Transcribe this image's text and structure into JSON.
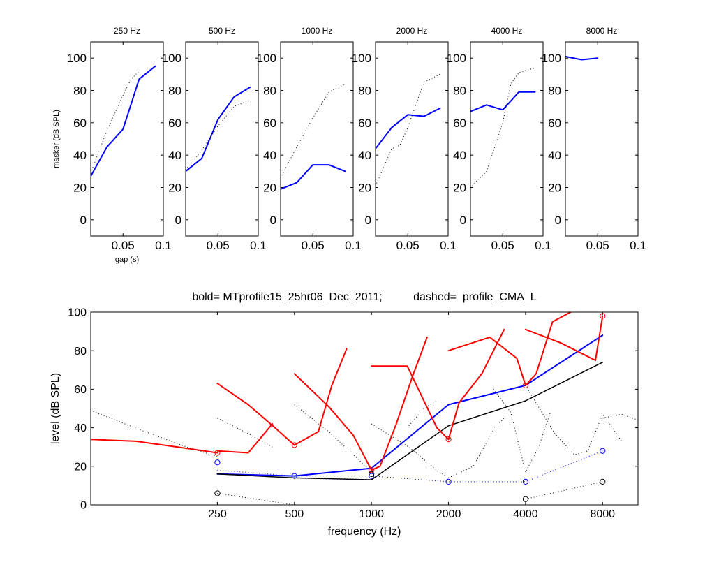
{
  "chart_data": [
    {
      "type": "line",
      "title": "250 Hz",
      "xlabel": "gap (s)",
      "ylabel": "masker (dB SPL)",
      "xlim": [
        0.01,
        0.1
      ],
      "ylim": [
        -10,
        110
      ],
      "xticks": [
        0.05,
        0.1
      ],
      "xtick_labels": [
        "0.05",
        "0.1"
      ],
      "yticks": [
        0,
        20,
        40,
        60,
        80,
        100
      ],
      "ytick_labels": [
        "0",
        "20",
        "40",
        "60",
        "80",
        "100"
      ],
      "series": [
        {
          "style": "bold",
          "color": "#0000ff",
          "x": [
            0.01,
            0.03,
            0.05,
            0.07,
            0.09
          ],
          "y": [
            27,
            45,
            56,
            87,
            95
          ]
        },
        {
          "style": "dotted",
          "color": "#000000",
          "x": [
            0.01,
            0.03,
            0.05,
            0.06,
            0.07
          ],
          "y": [
            29,
            55,
            77,
            87,
            92
          ]
        }
      ]
    },
    {
      "type": "line",
      "title": "500 Hz",
      "xlim": [
        0.01,
        0.1
      ],
      "ylim": [
        -10,
        110
      ],
      "xticks": [
        0.05,
        0.1
      ],
      "xtick_labels": [
        "0.05",
        "0.1"
      ],
      "yticks": [
        0,
        20,
        40,
        60,
        80,
        100
      ],
      "ytick_labels": [
        "0",
        "20",
        "40",
        "60",
        "80",
        "100"
      ],
      "series": [
        {
          "style": "bold",
          "color": "#0000ff",
          "x": [
            0.01,
            0.03,
            0.05,
            0.07,
            0.09
          ],
          "y": [
            30,
            38,
            62,
            76,
            82
          ]
        },
        {
          "style": "dotted",
          "color": "#000000",
          "x": [
            0.01,
            0.03,
            0.05,
            0.07,
            0.09
          ],
          "y": [
            31,
            43,
            58,
            70,
            74
          ]
        }
      ]
    },
    {
      "type": "line",
      "title": "1000 Hz",
      "xlim": [
        0.01,
        0.1
      ],
      "ylim": [
        -10,
        110
      ],
      "xticks": [
        0.05,
        0.1
      ],
      "xtick_labels": [
        "0.05",
        "0.1"
      ],
      "yticks": [
        0,
        20,
        40,
        60,
        80,
        100
      ],
      "ytick_labels": [
        "0",
        "20",
        "40",
        "60",
        "80",
        "100"
      ],
      "series": [
        {
          "style": "bold",
          "color": "#0000ff",
          "x": [
            0.01,
            0.03,
            0.05,
            0.07,
            0.09
          ],
          "y": [
            19,
            23,
            34,
            34,
            30
          ]
        },
        {
          "style": "dotted",
          "color": "#000000",
          "x": [
            0.01,
            0.03,
            0.05,
            0.07,
            0.09
          ],
          "y": [
            26,
            45,
            63,
            79,
            84
          ]
        }
      ]
    },
    {
      "type": "line",
      "title": "2000 Hz",
      "xlim": [
        0.01,
        0.1
      ],
      "ylim": [
        -10,
        110
      ],
      "xticks": [
        0.05,
        0.1
      ],
      "xtick_labels": [
        "0.05",
        "0.1"
      ],
      "yticks": [
        0,
        20,
        40,
        60,
        80,
        100
      ],
      "ytick_labels": [
        "0",
        "20",
        "40",
        "60",
        "80",
        "100"
      ],
      "series": [
        {
          "style": "bold",
          "color": "#0000ff",
          "x": [
            0.01,
            0.03,
            0.05,
            0.07,
            0.09
          ],
          "y": [
            44,
            57,
            65,
            64,
            69
          ]
        },
        {
          "style": "dotted",
          "color": "#000000",
          "x": [
            0.01,
            0.03,
            0.04,
            0.05,
            0.07,
            0.09
          ],
          "y": [
            21,
            44,
            46,
            57,
            85,
            90
          ]
        }
      ]
    },
    {
      "type": "line",
      "title": "4000 Hz",
      "xlim": [
        0.01,
        0.1
      ],
      "ylim": [
        -10,
        110
      ],
      "xticks": [
        0.05,
        0.1
      ],
      "xtick_labels": [
        "0.05",
        "0.1"
      ],
      "yticks": [
        0,
        20,
        40,
        60,
        80,
        100
      ],
      "ytick_labels": [
        "0",
        "20",
        "40",
        "60",
        "80",
        "100"
      ],
      "series": [
        {
          "style": "bold",
          "color": "#0000ff",
          "x": [
            0.01,
            0.03,
            0.05,
            0.07,
            0.09
          ],
          "y": [
            67,
            71,
            68,
            79,
            79
          ]
        },
        {
          "style": "dotted",
          "color": "#000000",
          "x": [
            0.01,
            0.03,
            0.05,
            0.06,
            0.07,
            0.09
          ],
          "y": [
            20,
            30,
            60,
            84,
            91,
            94
          ]
        }
      ]
    },
    {
      "type": "line",
      "title": "8000 Hz",
      "xlim": [
        0.01,
        0.1
      ],
      "ylim": [
        -10,
        110
      ],
      "xticks": [
        0.05,
        0.1
      ],
      "xtick_labels": [
        "0.05",
        "0.1"
      ],
      "yticks": [
        0,
        20,
        40,
        60,
        80,
        100
      ],
      "ytick_labels": [
        "0",
        "20",
        "40",
        "60",
        "80",
        "100"
      ],
      "series": [
        {
          "style": "bold",
          "color": "#0000ff",
          "x": [
            0.01,
            0.03,
            0.05
          ],
          "y": [
            101,
            99,
            100
          ]
        }
      ]
    },
    {
      "type": "line",
      "title": "bold= MTprofile15_25hr06_Dec_2011;          dashed=  profile_CMA_L",
      "xlabel": "frequency (Hz)",
      "ylabel": "level (dB SPL)",
      "xscale": "log",
      "xlim": [
        80,
        11000
      ],
      "ylim": [
        0,
        100
      ],
      "xticks": [
        250,
        500,
        1000,
        2000,
        4000,
        8000
      ],
      "xtick_labels": [
        "250",
        "500",
        "1000",
        "2000",
        "4000",
        "8000"
      ],
      "yticks": [
        0,
        20,
        40,
        60,
        80,
        100
      ],
      "ytick_labels": [
        "0",
        "20",
        "40",
        "60",
        "80",
        "100"
      ],
      "series": [
        {
          "style": "bold",
          "color": "#0000ff",
          "x": [
            250,
            500,
            1000,
            2000,
            4000,
            8000
          ],
          "y": [
            16,
            15,
            19,
            52,
            62,
            88
          ]
        },
        {
          "style": "solid",
          "color": "#000000",
          "x": [
            250,
            500,
            1000,
            2000,
            4000,
            8000
          ],
          "y": [
            16,
            14,
            13,
            41,
            54,
            74
          ]
        },
        {
          "style": "dotted",
          "color": "#0000ff",
          "x": [
            250,
            500,
            1000,
            2000,
            4000,
            8000
          ],
          "y": [
            18,
            15,
            15,
            12,
            12,
            28
          ]
        },
        {
          "style": "dotted",
          "color": "#000000",
          "x": [
            250,
            500
          ],
          "y": [
            6,
            0
          ]
        },
        {
          "style": "dotted",
          "color": "#000000",
          "x": [
            4000,
            8000
          ],
          "y": [
            3,
            12
          ]
        },
        {
          "style": "bold",
          "color": "#ff0000",
          "x": [
            80,
            120,
            175,
            250
          ],
          "y": [
            34,
            33,
            30,
            27
          ]
        },
        {
          "style": "bold",
          "color": "#ff0000",
          "x": [
            250,
            330,
            410
          ],
          "y": [
            28,
            27,
            42
          ]
        },
        {
          "style": "bold",
          "color": "#ff0000",
          "x": [
            250,
            330,
            420,
            500
          ],
          "y": [
            63,
            52,
            40,
            31
          ]
        },
        {
          "style": "bold",
          "color": "#ff0000",
          "x": [
            500,
            620,
            700,
            800
          ],
          "y": [
            31,
            38,
            62,
            81
          ]
        },
        {
          "style": "bold",
          "color": "#ff0000",
          "x": [
            500,
            680,
            850,
            1000
          ],
          "y": [
            68,
            51,
            36,
            18
          ]
        },
        {
          "style": "bold",
          "color": "#ff0000",
          "x": [
            1000,
            1080,
            1250,
            1450,
            1650
          ],
          "y": [
            18,
            20,
            42,
            67,
            87
          ]
        },
        {
          "style": "bold",
          "color": "#ff0000",
          "x": [
            1000,
            1380,
            1800,
            2000
          ],
          "y": [
            72,
            72,
            40,
            34
          ]
        },
        {
          "style": "bold",
          "color": "#ff0000",
          "x": [
            2000,
            2200,
            2700,
            3300
          ],
          "y": [
            34,
            53,
            68,
            91
          ]
        },
        {
          "style": "bold",
          "color": "#ff0000",
          "x": [
            2000,
            2900,
            3700,
            4000
          ],
          "y": [
            80,
            87,
            76,
            62
          ]
        },
        {
          "style": "bold",
          "color": "#ff0000",
          "x": [
            4000,
            4400,
            5100,
            6000
          ],
          "y": [
            62,
            68,
            95,
            100
          ]
        },
        {
          "style": "bold",
          "color": "#ff0000",
          "x": [
            4000,
            5500,
            7500,
            8000
          ],
          "y": [
            91,
            84,
            75,
            98
          ]
        },
        {
          "style": "dotted",
          "color": "#000000",
          "x": [
            80,
            130,
            190,
            250
          ],
          "y": [
            49,
            38,
            30,
            25
          ]
        },
        {
          "style": "dotted",
          "color": "#000000",
          "x": [
            250,
            330,
            410
          ],
          "y": [
            45,
            37,
            30
          ]
        },
        {
          "style": "dotted",
          "color": "#000000",
          "x": [
            500,
            680,
            850,
            1000
          ],
          "y": [
            52,
            38,
            26,
            17
          ]
        },
        {
          "style": "dotted",
          "color": "#000000",
          "x": [
            1000,
            1400,
            1800,
            2000
          ],
          "y": [
            42,
            30,
            18,
            14
          ]
        },
        {
          "style": "dotted",
          "color": "#000000",
          "x": [
            1400,
            1600,
            1800
          ],
          "y": [
            41,
            50,
            54
          ]
        },
        {
          "style": "dotted",
          "color": "#000000",
          "x": [
            2000,
            2500,
            3000,
            3300
          ],
          "y": [
            14,
            20,
            39,
            45
          ]
        },
        {
          "style": "dotted",
          "color": "#000000",
          "x": [
            3000,
            3500,
            4000,
            4500,
            5000
          ],
          "y": [
            60,
            48,
            17,
            30,
            48
          ]
        },
        {
          "style": "dotted",
          "color": "#000000",
          "x": [
            4000,
            5200,
            6200,
            7000,
            8000,
            9500
          ],
          "y": [
            62,
            37,
            26,
            28,
            47,
            33
          ]
        },
        {
          "style": "dotted",
          "color": "#000000",
          "x": [
            8000,
            9500,
            11000
          ],
          "y": [
            45,
            47,
            44
          ]
        }
      ],
      "markers": [
        {
          "color": "#ff0000",
          "x": [
            250,
            500,
            1000,
            2000,
            4000,
            8000
          ],
          "y": [
            27,
            31,
            18,
            34,
            62,
            98
          ]
        },
        {
          "color": "#0000ff",
          "x": [
            250,
            500,
            1000,
            2000,
            4000,
            8000
          ],
          "y": [
            22,
            15,
            15,
            12,
            12,
            28
          ]
        },
        {
          "color": "#000000",
          "x": [
            250,
            1000,
            4000,
            8000
          ],
          "y": [
            6,
            16,
            3,
            12
          ]
        }
      ]
    }
  ]
}
